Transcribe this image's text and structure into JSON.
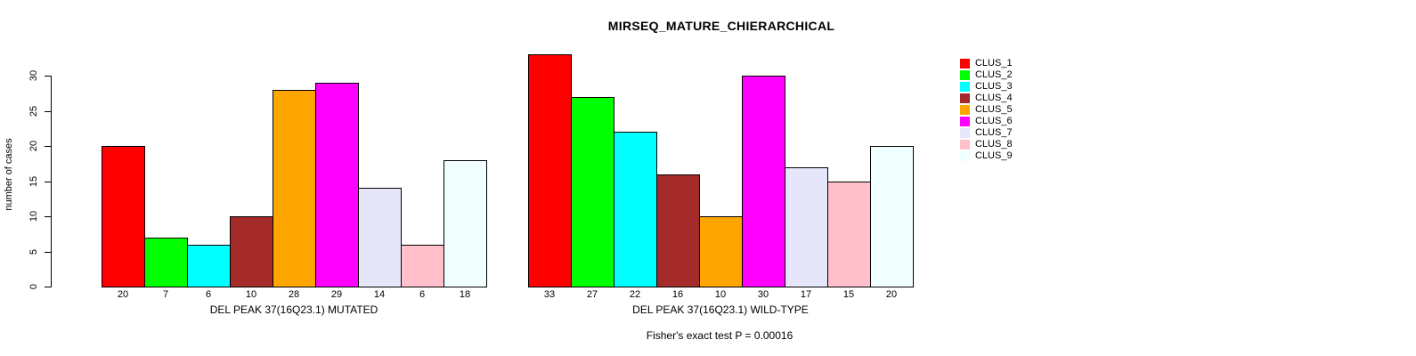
{
  "figure": {
    "title": "MIRSEQ_MATURE_CHIERARCHICAL",
    "ylabel": "number of cases",
    "footnote": "Fisher's exact test P = 0.00016"
  },
  "legend": {
    "position": "right",
    "items": [
      {
        "label": "CLUS_1",
        "color": "#FF0000"
      },
      {
        "label": "CLUS_2",
        "color": "#00FF00"
      },
      {
        "label": "CLUS_3",
        "color": "#00FFFF"
      },
      {
        "label": "CLUS_4",
        "color": "#A52A2A"
      },
      {
        "label": "CLUS_5",
        "color": "#FFA500"
      },
      {
        "label": "CLUS_6",
        "color": "#FF00FF"
      },
      {
        "label": "CLUS_7",
        "color": "#E6E6FA"
      },
      {
        "label": "CLUS_8",
        "color": "#FFC0CB"
      },
      {
        "label": "CLUS_9",
        "color": "#F0FFFF"
      }
    ]
  },
  "chart_data": [
    {
      "type": "bar",
      "panel": "mutated",
      "xlabel": "DEL PEAK 37(16Q23.1) MUTATED",
      "categories": [
        "CLUS_1",
        "CLUS_2",
        "CLUS_3",
        "CLUS_4",
        "CLUS_5",
        "CLUS_6",
        "CLUS_7",
        "CLUS_8",
        "CLUS_9"
      ],
      "values": [
        20,
        7,
        6,
        10,
        28,
        29,
        14,
        6,
        18
      ],
      "bar_labels": [
        "20",
        "7",
        "6",
        "10",
        "28",
        "29",
        "14",
        "6",
        "18"
      ],
      "ylabel": "number of cases",
      "yticks": [
        0,
        5,
        10,
        15,
        20,
        25,
        30
      ],
      "ylim": [
        0,
        33
      ],
      "grid": false,
      "show_y_axis": true
    },
    {
      "type": "bar",
      "panel": "wild-type",
      "xlabel": "DEL PEAK 37(16Q23.1) WILD-TYPE",
      "categories": [
        "CLUS_1",
        "CLUS_2",
        "CLUS_3",
        "CLUS_4",
        "CLUS_5",
        "CLUS_6",
        "CLUS_7",
        "CLUS_8",
        "CLUS_9"
      ],
      "values": [
        33,
        27,
        22,
        16,
        10,
        30,
        17,
        15,
        20
      ],
      "bar_labels": [
        "33",
        "27",
        "22",
        "16",
        "10",
        "30",
        "17",
        "15",
        "20"
      ],
      "ylim": [
        0,
        33
      ],
      "grid": false,
      "show_y_axis": false
    }
  ]
}
